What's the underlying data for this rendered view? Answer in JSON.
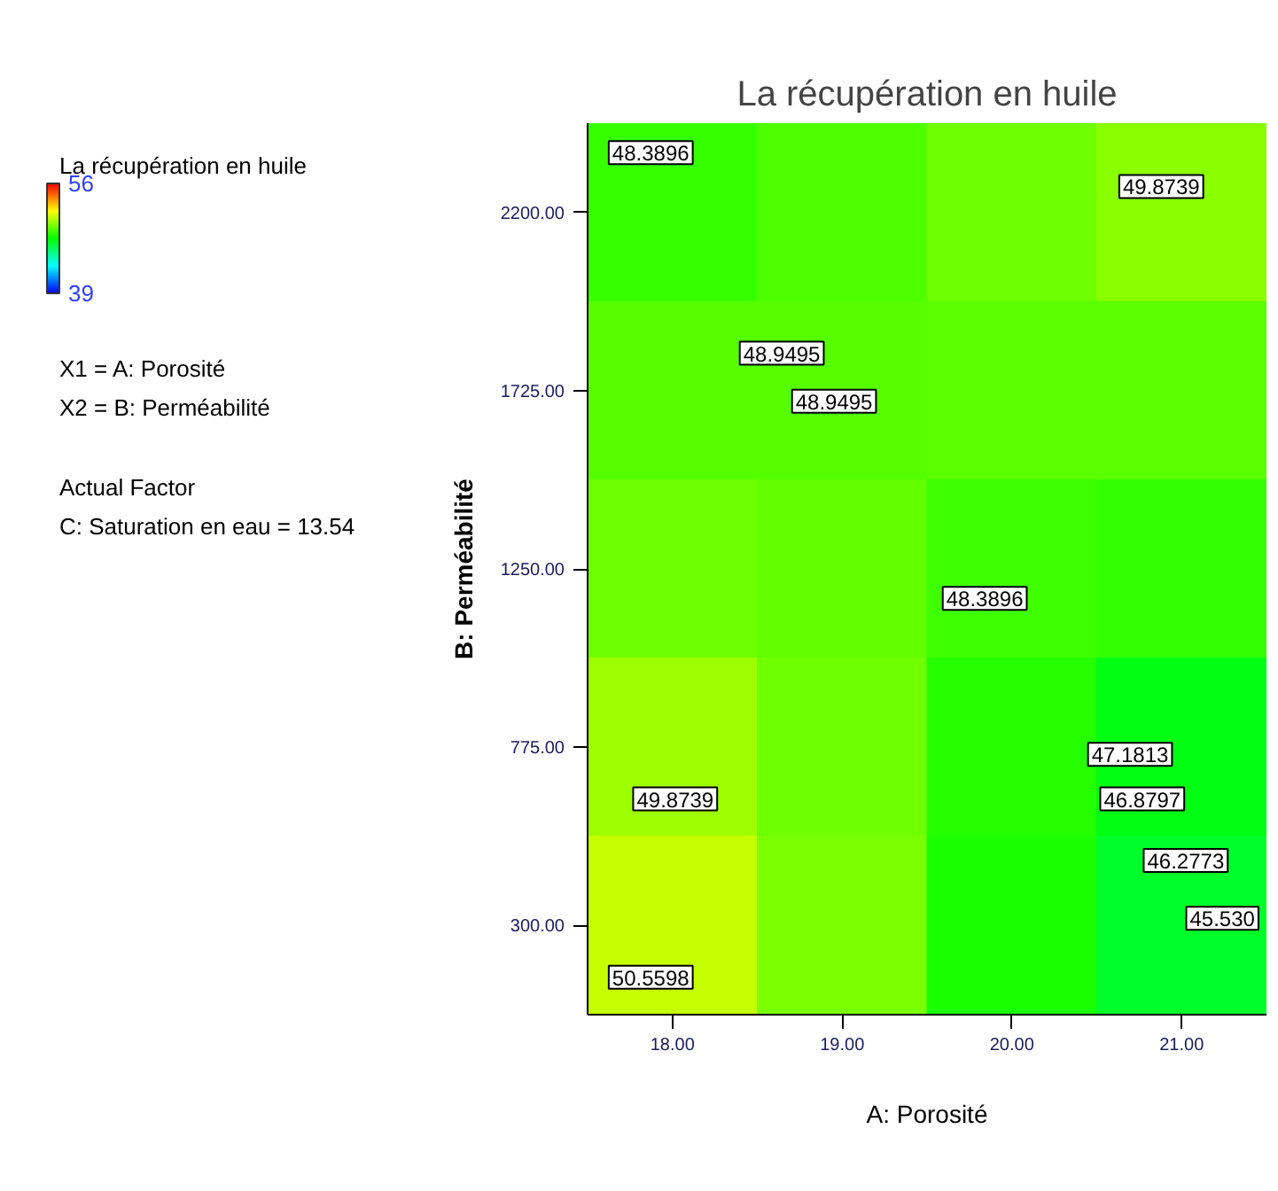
{
  "chart_data": {
    "type": "heatmap",
    "title": "La récupération en huile",
    "xlabel": "A: Porosité",
    "ylabel": "B: Perméabilité",
    "clabel": "La récupération en huile",
    "clim": [
      39,
      56
    ],
    "cticks": [
      39,
      56
    ],
    "categories": [
      "18.00",
      "19.00",
      "20.00",
      "21.00"
    ],
    "y_categories": [
      "2200.00",
      "1725.00",
      "1250.00",
      "775.00",
      "300.00"
    ],
    "cells": [
      [
        48.4,
        48.8,
        49.3,
        49.8
      ],
      [
        48.9,
        48.9,
        49.0,
        49.0
      ],
      [
        49.3,
        49.1,
        48.5,
        48.3
      ],
      [
        50.1,
        49.3,
        48.1,
        47.2
      ],
      [
        50.8,
        49.5,
        47.9,
        46.8
      ]
    ],
    "annotations": [
      "X1 = A: Porosité",
      "X2 = B: Perméabilité",
      "Actual Factor",
      "C: Saturation en eau = 13.54",
      "48.3896",
      "49.8739",
      "48.9495",
      "48.9495",
      "48.3896",
      "47.1813",
      "46.8797",
      "46.2773",
      "45.530",
      "49.8739",
      "50.5598"
    ]
  }
}
